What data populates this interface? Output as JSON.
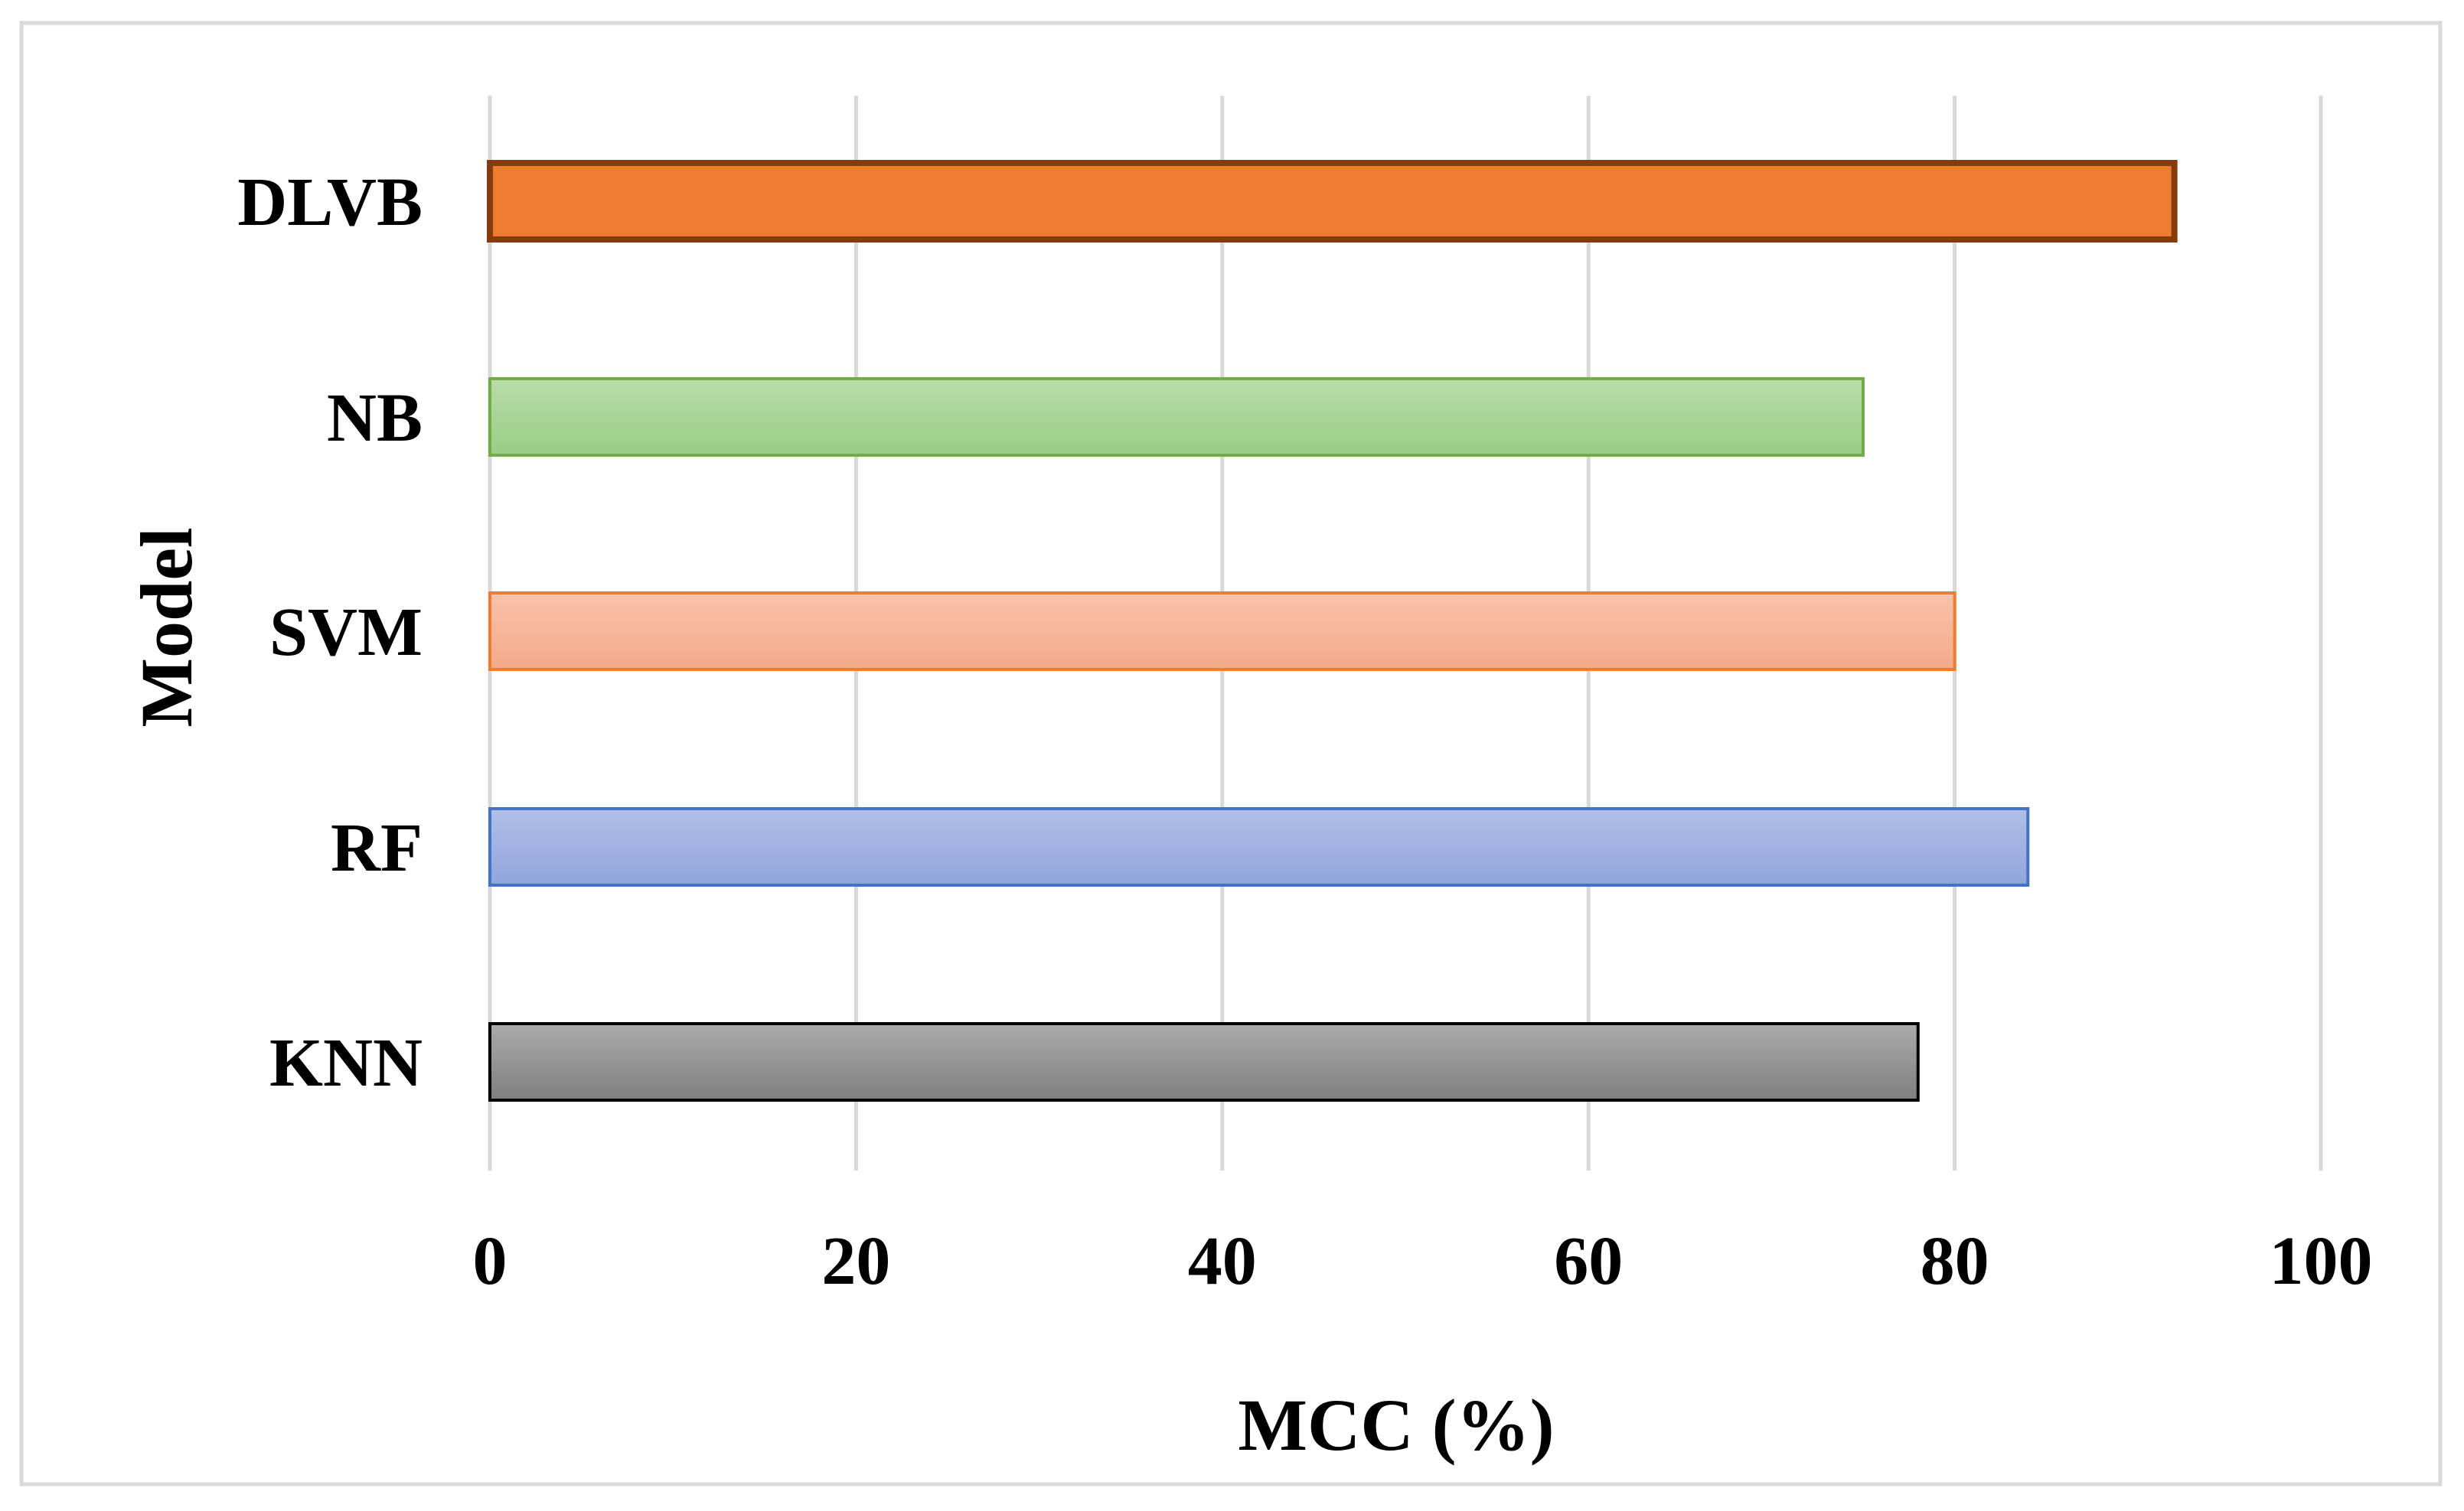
{
  "chart_data": {
    "type": "bar",
    "orientation": "horizontal",
    "title": "",
    "xlabel": "MCC (%)",
    "ylabel": "Model",
    "xlim": [
      0,
      100
    ],
    "x_ticks": [
      0,
      20,
      40,
      60,
      80,
      100
    ],
    "x_tick_labels": [
      "0",
      "20",
      "40",
      "60",
      "80",
      "100"
    ],
    "grid": "vertical major gridlines",
    "legend": "none",
    "categories": [
      "DLVB",
      "NB",
      "SVM",
      "RF",
      "KNN"
    ],
    "values": [
      92,
      75,
      80,
      84,
      78
    ],
    "bar_colors": [
      {
        "top": "#ED7D31",
        "bottom": "#ED7D31",
        "stroke": "#843C0C"
      },
      {
        "top": "#B8DCA9",
        "bottom": "#9ACD85",
        "stroke": "#70AD47"
      },
      {
        "top": "#F8C2AA",
        "bottom": "#F4AA88",
        "stroke": "#ED7D31"
      },
      {
        "top": "#B1BFE6",
        "bottom": "#8FA5DD",
        "stroke": "#4472C4"
      },
      {
        "top": "#AAAAAA",
        "bottom": "#7F7F7F",
        "stroke": "#000000"
      }
    ],
    "gridline_color": "#D9D9D9",
    "frame_color": "#D9D9D9"
  }
}
